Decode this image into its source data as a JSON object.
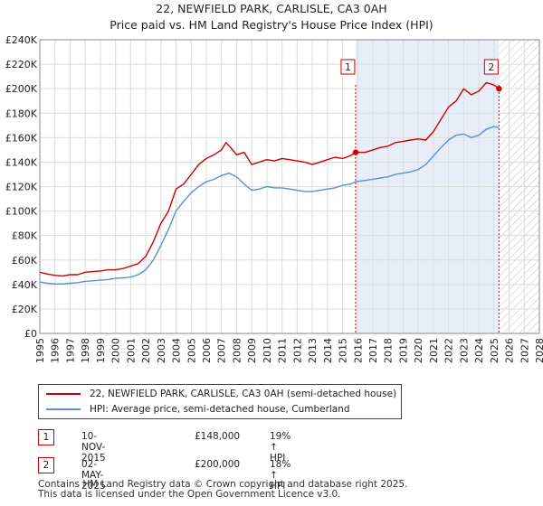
{
  "header": {
    "title_line1": "22, NEWFIELD PARK, CARLISLE, CA3 0AH",
    "title_line2": "Price paid vs. HM Land Registry's House Price Index (HPI)"
  },
  "legend": {
    "items": [
      {
        "label": "22, NEWFIELD PARK, CARLISLE, CA3 0AH (semi-detached house)",
        "color": "#cc0000"
      },
      {
        "label": "HPI: Average price, semi-detached house, Cumberland",
        "color": "#5b8fd0"
      }
    ]
  },
  "transactions": [
    {
      "num": "1",
      "date": "10-NOV-2015",
      "price": "£148,000",
      "hpi_change": "19% ↑ HPI"
    },
    {
      "num": "2",
      "date": "02-MAY-2025",
      "price": "£200,000",
      "hpi_change": "18% ↑ HPI"
    }
  ],
  "footer": {
    "line1": "Contains HM Land Registry data © Crown copyright and database right 2025.",
    "line2": "This data is licensed under the Open Government Licence v3.0."
  },
  "chart_data": {
    "type": "line",
    "x_range": [
      1995,
      2028
    ],
    "ylim": [
      0,
      240000
    ],
    "y_ticks": [
      {
        "value": 0,
        "label": "£0"
      },
      {
        "value": 20000,
        "label": "£20K"
      },
      {
        "value": 40000,
        "label": "£40K"
      },
      {
        "value": 60000,
        "label": "£60K"
      },
      {
        "value": 80000,
        "label": "£80K"
      },
      {
        "value": 100000,
        "label": "£100K"
      },
      {
        "value": 120000,
        "label": "£120K"
      },
      {
        "value": 140000,
        "label": "£140K"
      },
      {
        "value": 160000,
        "label": "£160K"
      },
      {
        "value": 180000,
        "label": "£180K"
      },
      {
        "value": 200000,
        "label": "£200K"
      },
      {
        "value": 220000,
        "label": "£220K"
      },
      {
        "value": 240000,
        "label": "£240K"
      }
    ],
    "x_ticks": [
      "1995",
      "1996",
      "1997",
      "1998",
      "1999",
      "2000",
      "2001",
      "2002",
      "2003",
      "2004",
      "2005",
      "2006",
      "2007",
      "2008",
      "2009",
      "2010",
      "2011",
      "2012",
      "2013",
      "2014",
      "2015",
      "2016",
      "2017",
      "2018",
      "2019",
      "2020",
      "2021",
      "2022",
      "2023",
      "2024",
      "2025",
      "2026",
      "2027",
      "2028"
    ],
    "shaded_start": 2015.86,
    "hatched_start": 2025.33,
    "grid": true,
    "series": [
      {
        "name": "22, NEWFIELD PARK, CARLISLE, CA3 0AH (semi-detached house)",
        "color": "#cc0000",
        "x": [
          1995,
          1995.5,
          1996,
          1996.5,
          1997,
          1997.5,
          1998,
          1998.5,
          1999,
          1999.5,
          2000,
          2000.5,
          2001,
          2001.5,
          2002,
          2002.5,
          2003,
          2003.5,
          2004,
          2004.5,
          2005,
          2005.5,
          2006,
          2006.5,
          2007,
          2007.3,
          2007.6,
          2008,
          2008.5,
          2009,
          2009.5,
          2010,
          2010.5,
          2011,
          2011.5,
          2012,
          2012.5,
          2013,
          2013.5,
          2014,
          2014.5,
          2015,
          2015.5,
          2015.86,
          2016.5,
          2017,
          2017.5,
          2018,
          2018.5,
          2019,
          2019.5,
          2020,
          2020.5,
          2021,
          2021.5,
          2022,
          2022.5,
          2023,
          2023.5,
          2024,
          2024.5,
          2025,
          2025.33
        ],
        "values": [
          50000,
          48500,
          47500,
          47000,
          48000,
          48000,
          50000,
          50500,
          51000,
          52000,
          52000,
          53000,
          55000,
          57000,
          63000,
          75000,
          90000,
          100000,
          118000,
          122000,
          130000,
          138000,
          143000,
          146000,
          150000,
          156000,
          152000,
          146000,
          148000,
          138000,
          140000,
          142000,
          141000,
          143000,
          142000,
          141000,
          140000,
          138000,
          140000,
          142000,
          144000,
          143000,
          145000,
          148000,
          148000,
          150000,
          152000,
          153000,
          156000,
          157000,
          158000,
          159000,
          158000,
          165000,
          175000,
          185000,
          190000,
          200000,
          195000,
          198000,
          205000,
          203000,
          200000
        ]
      },
      {
        "name": "HPI: Average price, semi-detached house, Cumberland",
        "color": "#5b8fd0",
        "x": [
          1995,
          1995.5,
          1996,
          1996.5,
          1997,
          1997.5,
          1998,
          1998.5,
          1999,
          1999.5,
          2000,
          2000.5,
          2001,
          2001.5,
          2002,
          2002.5,
          2003,
          2003.5,
          2004,
          2004.5,
          2005,
          2005.5,
          2006,
          2006.5,
          2007,
          2007.5,
          2008,
          2008.5,
          2009,
          2009.5,
          2010,
          2010.5,
          2011,
          2011.5,
          2012,
          2012.5,
          2013,
          2013.5,
          2014,
          2014.5,
          2015,
          2015.5,
          2015.86,
          2016.5,
          2017,
          2017.5,
          2018,
          2018.5,
          2019,
          2019.5,
          2020,
          2020.5,
          2021,
          2021.5,
          2022,
          2022.5,
          2023,
          2023.5,
          2024,
          2024.5,
          2025,
          2025.33
        ],
        "values": [
          42000,
          41000,
          40500,
          40500,
          41000,
          41500,
          42500,
          43000,
          43500,
          44000,
          45000,
          45500,
          46000,
          48000,
          52000,
          60000,
          72000,
          85000,
          100000,
          108000,
          115000,
          120000,
          124000,
          126000,
          129000,
          131000,
          128000,
          122000,
          117000,
          118000,
          120000,
          119000,
          119000,
          118000,
          117000,
          116000,
          116000,
          117000,
          118000,
          119000,
          121000,
          122000,
          124000,
          125000,
          126000,
          127000,
          128000,
          130000,
          131000,
          132000,
          134000,
          138000,
          145000,
          152000,
          158000,
          162000,
          163000,
          160000,
          162000,
          167000,
          169000,
          168000
        ]
      }
    ],
    "annotations": [
      {
        "label": "1",
        "x": 2015.86,
        "value": 148000
      },
      {
        "label": "2",
        "x": 2025.33,
        "value": 200000
      }
    ]
  }
}
